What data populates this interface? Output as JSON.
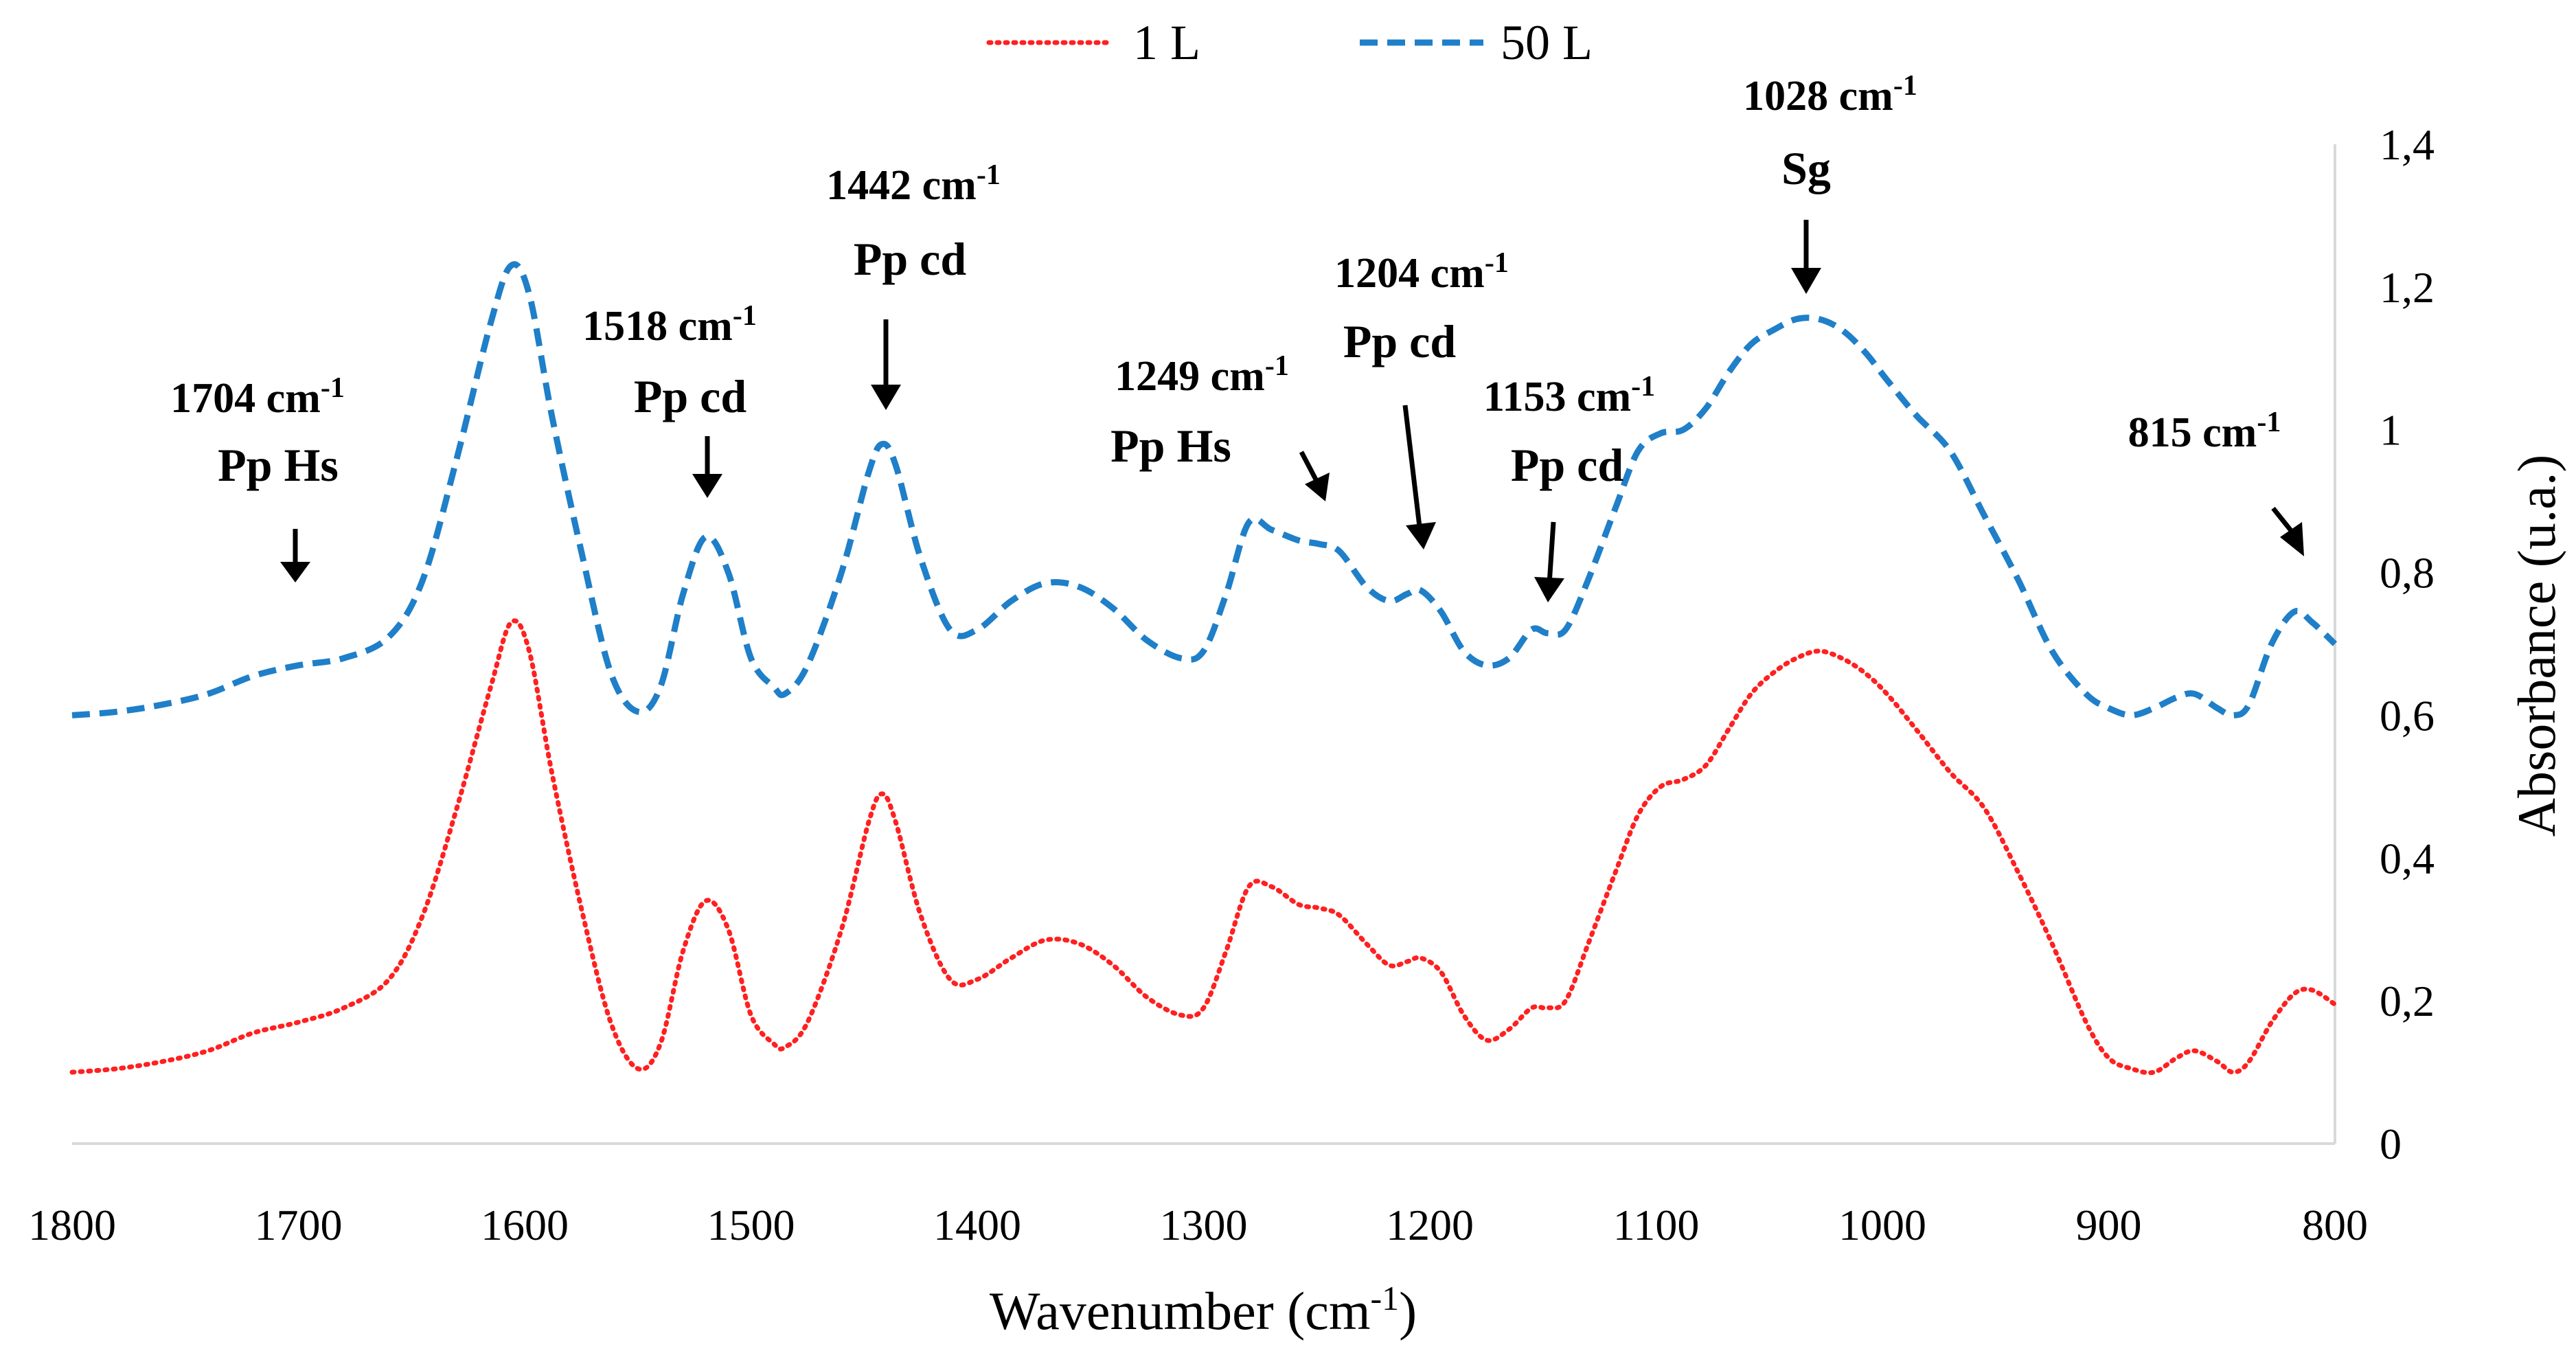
{
  "chart_data": {
    "type": "line",
    "title": "",
    "xlabel": "Wavenumber (cm",
    "xlabel_sup": "-1",
    "xlabel_close": ")",
    "ylabel": "Absorbance (u.a.)",
    "xlim": [
      1800,
      800
    ],
    "ylim": [
      0,
      1.4
    ],
    "x_ticks": [
      1800,
      1700,
      1600,
      1500,
      1400,
      1300,
      1200,
      1100,
      1000,
      900,
      800
    ],
    "x_tick_labels": [
      "1800",
      "1700",
      "1600",
      "1500",
      "1400",
      "1300",
      "1200",
      "1100",
      "1000",
      "900",
      "800"
    ],
    "y_ticks": [
      0,
      0.2,
      0.4,
      0.6,
      0.8,
      1.0,
      1.2,
      1.4
    ],
    "y_tick_labels": [
      "0",
      "0,2",
      "0,4",
      "0,6",
      "0,8",
      "1",
      "1,2",
      "1,4"
    ],
    "grid": false,
    "legend_position": "top-center",
    "series": [
      {
        "name": "1 L",
        "color": "#ff2020",
        "style": "dotted",
        "points": [
          [
            1800,
            0.1
          ],
          [
            1780,
            0.105
          ],
          [
            1760,
            0.115
          ],
          [
            1740,
            0.13
          ],
          [
            1720,
            0.155
          ],
          [
            1700,
            0.17
          ],
          [
            1680,
            0.19
          ],
          [
            1660,
            0.23
          ],
          [
            1645,
            0.32
          ],
          [
            1630,
            0.47
          ],
          [
            1615,
            0.64
          ],
          [
            1606,
            0.73
          ],
          [
            1598,
            0.69
          ],
          [
            1588,
            0.52
          ],
          [
            1575,
            0.33
          ],
          [
            1562,
            0.17
          ],
          [
            1550,
            0.105
          ],
          [
            1540,
            0.14
          ],
          [
            1530,
            0.27
          ],
          [
            1520,
            0.34
          ],
          [
            1510,
            0.3
          ],
          [
            1500,
            0.18
          ],
          [
            1490,
            0.14
          ],
          [
            1485,
            0.135
          ],
          [
            1475,
            0.17
          ],
          [
            1460,
            0.3
          ],
          [
            1448,
            0.45
          ],
          [
            1442,
            0.49
          ],
          [
            1436,
            0.45
          ],
          [
            1425,
            0.32
          ],
          [
            1412,
            0.23
          ],
          [
            1400,
            0.23
          ],
          [
            1385,
            0.26
          ],
          [
            1370,
            0.285
          ],
          [
            1355,
            0.28
          ],
          [
            1340,
            0.25
          ],
          [
            1325,
            0.205
          ],
          [
            1310,
            0.18
          ],
          [
            1300,
            0.19
          ],
          [
            1290,
            0.27
          ],
          [
            1280,
            0.36
          ],
          [
            1270,
            0.36
          ],
          [
            1258,
            0.335
          ],
          [
            1249,
            0.33
          ],
          [
            1240,
            0.32
          ],
          [
            1228,
            0.28
          ],
          [
            1218,
            0.25
          ],
          [
            1210,
            0.255
          ],
          [
            1204,
            0.26
          ],
          [
            1195,
            0.24
          ],
          [
            1185,
            0.18
          ],
          [
            1175,
            0.145
          ],
          [
            1165,
            0.16
          ],
          [
            1155,
            0.19
          ],
          [
            1148,
            0.19
          ],
          [
            1140,
            0.2
          ],
          [
            1130,
            0.28
          ],
          [
            1118,
            0.38
          ],
          [
            1108,
            0.46
          ],
          [
            1098,
            0.5
          ],
          [
            1088,
            0.51
          ],
          [
            1078,
            0.53
          ],
          [
            1068,
            0.58
          ],
          [
            1058,
            0.63
          ],
          [
            1048,
            0.66
          ],
          [
            1038,
            0.68
          ],
          [
            1028,
            0.69
          ],
          [
            1018,
            0.68
          ],
          [
            1008,
            0.66
          ],
          [
            998,
            0.63
          ],
          [
            985,
            0.58
          ],
          [
            970,
            0.52
          ],
          [
            955,
            0.47
          ],
          [
            940,
            0.38
          ],
          [
            925,
            0.28
          ],
          [
            910,
            0.17
          ],
          [
            900,
            0.12
          ],
          [
            890,
            0.105
          ],
          [
            880,
            0.1
          ],
          [
            870,
            0.12
          ],
          [
            862,
            0.13
          ],
          [
            852,
            0.115
          ],
          [
            845,
            0.1
          ],
          [
            838,
            0.115
          ],
          [
            828,
            0.17
          ],
          [
            818,
            0.21
          ],
          [
            810,
            0.215
          ],
          [
            800,
            0.195
          ]
        ]
      },
      {
        "name": "50 L",
        "color": "#1f7fc8",
        "style": "dashed",
        "points": [
          [
            1800,
            0.6
          ],
          [
            1780,
            0.605
          ],
          [
            1760,
            0.615
          ],
          [
            1740,
            0.63
          ],
          [
            1720,
            0.655
          ],
          [
            1700,
            0.67
          ],
          [
            1680,
            0.68
          ],
          [
            1660,
            0.71
          ],
          [
            1645,
            0.79
          ],
          [
            1630,
            0.96
          ],
          [
            1615,
            1.15
          ],
          [
            1606,
            1.23
          ],
          [
            1598,
            1.19
          ],
          [
            1588,
            1.02
          ],
          [
            1575,
            0.83
          ],
          [
            1562,
            0.66
          ],
          [
            1550,
            0.605
          ],
          [
            1540,
            0.64
          ],
          [
            1530,
            0.77
          ],
          [
            1520,
            0.85
          ],
          [
            1510,
            0.8
          ],
          [
            1500,
            0.68
          ],
          [
            1490,
            0.64
          ],
          [
            1485,
            0.63
          ],
          [
            1475,
            0.67
          ],
          [
            1460,
            0.8
          ],
          [
            1448,
            0.94
          ],
          [
            1442,
            0.98
          ],
          [
            1436,
            0.95
          ],
          [
            1425,
            0.82
          ],
          [
            1412,
            0.72
          ],
          [
            1400,
            0.72
          ],
          [
            1385,
            0.76
          ],
          [
            1370,
            0.785
          ],
          [
            1355,
            0.78
          ],
          [
            1340,
            0.75
          ],
          [
            1325,
            0.705
          ],
          [
            1310,
            0.68
          ],
          [
            1300,
            0.69
          ],
          [
            1290,
            0.77
          ],
          [
            1280,
            0.87
          ],
          [
            1270,
            0.86
          ],
          [
            1258,
            0.845
          ],
          [
            1249,
            0.84
          ],
          [
            1240,
            0.83
          ],
          [
            1228,
            0.78
          ],
          [
            1218,
            0.76
          ],
          [
            1210,
            0.77
          ],
          [
            1204,
            0.775
          ],
          [
            1195,
            0.745
          ],
          [
            1185,
            0.69
          ],
          [
            1175,
            0.67
          ],
          [
            1165,
            0.68
          ],
          [
            1155,
            0.72
          ],
          [
            1148,
            0.715
          ],
          [
            1140,
            0.72
          ],
          [
            1130,
            0.79
          ],
          [
            1118,
            0.89
          ],
          [
            1108,
            0.97
          ],
          [
            1098,
            0.995
          ],
          [
            1088,
            1.0
          ],
          [
            1078,
            1.03
          ],
          [
            1068,
            1.08
          ],
          [
            1058,
            1.12
          ],
          [
            1048,
            1.14
          ],
          [
            1038,
            1.155
          ],
          [
            1028,
            1.155
          ],
          [
            1018,
            1.14
          ],
          [
            1008,
            1.11
          ],
          [
            998,
            1.07
          ],
          [
            985,
            1.02
          ],
          [
            970,
            0.97
          ],
          [
            955,
            0.88
          ],
          [
            940,
            0.79
          ],
          [
            925,
            0.69
          ],
          [
            910,
            0.63
          ],
          [
            900,
            0.61
          ],
          [
            890,
            0.6
          ],
          [
            880,
            0.61
          ],
          [
            870,
            0.625
          ],
          [
            862,
            0.63
          ],
          [
            852,
            0.61
          ],
          [
            845,
            0.6
          ],
          [
            838,
            0.615
          ],
          [
            828,
            0.7
          ],
          [
            818,
            0.745
          ],
          [
            810,
            0.73
          ],
          [
            800,
            0.7
          ]
        ]
      }
    ],
    "annotations": [
      {
        "line1": "1704 cm",
        "sup": "-1",
        "line2": "Pp Hs"
      },
      {
        "line1": "1518 cm",
        "sup": "-1",
        "line2": "Pp cd"
      },
      {
        "line1": "1442 cm",
        "sup": "-1",
        "line2": "Pp cd"
      },
      {
        "line1": "1249 cm",
        "sup": "-1",
        "line2": "Pp Hs"
      },
      {
        "line1": "1204 cm",
        "sup": "-1",
        "line2": "Pp cd"
      },
      {
        "line1": "1153 cm",
        "sup": "-1",
        "line2": "Pp cd"
      },
      {
        "line1": "1028 cm",
        "sup": "-1",
        "line2": "Sg"
      },
      {
        "line1": "815 cm",
        "sup": "-1",
        "line2": ""
      }
    ]
  }
}
